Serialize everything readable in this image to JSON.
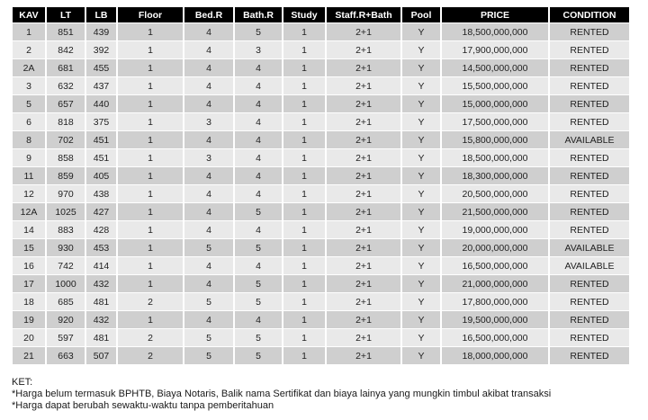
{
  "colors": {
    "header_bg": "#000000",
    "header_text": "#ffffff",
    "row_dark": "#cfcfcf",
    "row_light": "#e9e9e9",
    "body_text": "#1f1f1f",
    "page_bg": "#ffffff"
  },
  "table": {
    "columns": [
      "KAV",
      "LT",
      "LB",
      "Floor",
      "Bed.R",
      "Bath.R",
      "Study",
      "Staff.R+Bath",
      "Pool",
      "PRICE",
      "CONDITION"
    ],
    "rows": [
      [
        "1",
        "851",
        "439",
        "1",
        "4",
        "5",
        "1",
        "2+1",
        "Y",
        "18,500,000,000",
        "RENTED"
      ],
      [
        "2",
        "842",
        "392",
        "1",
        "4",
        "3",
        "1",
        "2+1",
        "Y",
        "17,900,000,000",
        "RENTED"
      ],
      [
        "2A",
        "681",
        "455",
        "1",
        "4",
        "4",
        "1",
        "2+1",
        "Y",
        "14,500,000,000",
        "RENTED"
      ],
      [
        "3",
        "632",
        "437",
        "1",
        "4",
        "4",
        "1",
        "2+1",
        "Y",
        "15,500,000,000",
        "RENTED"
      ],
      [
        "5",
        "657",
        "440",
        "1",
        "4",
        "4",
        "1",
        "2+1",
        "Y",
        "15,000,000,000",
        "RENTED"
      ],
      [
        "6",
        "818",
        "375",
        "1",
        "3",
        "4",
        "1",
        "2+1",
        "Y",
        "17,500,000,000",
        "RENTED"
      ],
      [
        "8",
        "702",
        "451",
        "1",
        "4",
        "4",
        "1",
        "2+1",
        "Y",
        "15,800,000,000",
        "AVAILABLE"
      ],
      [
        "9",
        "858",
        "451",
        "1",
        "3",
        "4",
        "1",
        "2+1",
        "Y",
        "18,500,000,000",
        "RENTED"
      ],
      [
        "11",
        "859",
        "405",
        "1",
        "4",
        "4",
        "1",
        "2+1",
        "Y",
        "18,300,000,000",
        "RENTED"
      ],
      [
        "12",
        "970",
        "438",
        "1",
        "4",
        "4",
        "1",
        "2+1",
        "Y",
        "20,500,000,000",
        "RENTED"
      ],
      [
        "12A",
        "1025",
        "427",
        "1",
        "4",
        "5",
        "1",
        "2+1",
        "Y",
        "21,500,000,000",
        "RENTED"
      ],
      [
        "14",
        "883",
        "428",
        "1",
        "4",
        "4",
        "1",
        "2+1",
        "Y",
        "19,000,000,000",
        "RENTED"
      ],
      [
        "15",
        "930",
        "453",
        "1",
        "5",
        "5",
        "1",
        "2+1",
        "Y",
        "20,000,000,000",
        "AVAILABLE"
      ],
      [
        "16",
        "742",
        "414",
        "1",
        "4",
        "4",
        "1",
        "2+1",
        "Y",
        "16,500,000,000",
        "AVAILABLE"
      ],
      [
        "17",
        "1000",
        "432",
        "1",
        "4",
        "5",
        "1",
        "2+1",
        "Y",
        "21,000,000,000",
        "RENTED"
      ],
      [
        "18",
        "685",
        "481",
        "2",
        "5",
        "5",
        "1",
        "2+1",
        "Y",
        "17,800,000,000",
        "RENTED"
      ],
      [
        "19",
        "920",
        "432",
        "1",
        "4",
        "4",
        "1",
        "2+1",
        "Y",
        "19,500,000,000",
        "RENTED"
      ],
      [
        "20",
        "597",
        "481",
        "2",
        "5",
        "5",
        "1",
        "2+1",
        "Y",
        "16,500,000,000",
        "RENTED"
      ],
      [
        "21",
        "663",
        "507",
        "2",
        "5",
        "5",
        "1",
        "2+1",
        "Y",
        "18,000,000,000",
        "RENTED"
      ]
    ]
  },
  "footer": {
    "title": "KET:",
    "notes": [
      "*Harga belum termasuk BPHTB, Biaya Notaris, Balik nama Sertifikat dan biaya lainya yang mungkin timbul akibat transaksi",
      "*Harga dapat berubah sewaktu-waktu tanpa pemberitahuan"
    ]
  }
}
